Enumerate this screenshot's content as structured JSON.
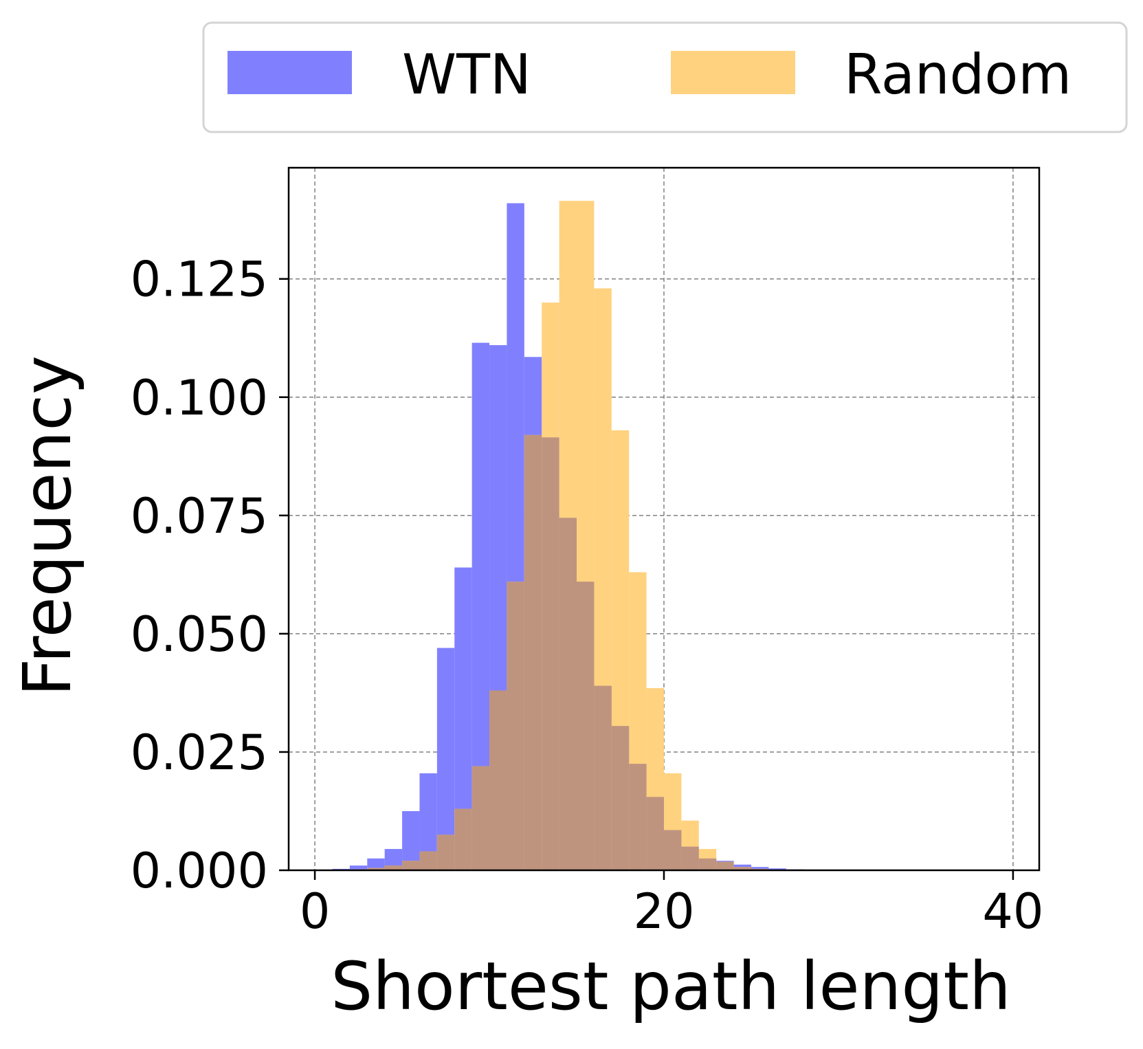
{
  "chart_data": {
    "type": "bar",
    "subtype": "overlapping-histogram",
    "title": "",
    "xlabel": "Shortest path length",
    "ylabel": "Frequency",
    "xlim": [
      -1.5,
      41.5
    ],
    "ylim": [
      0,
      0.1485
    ],
    "xticks": [
      0,
      20,
      40
    ],
    "xtick_labels": [
      "0",
      "20",
      "40"
    ],
    "yticks": [
      0.0,
      0.025,
      0.05,
      0.075,
      0.1,
      0.125
    ],
    "ytick_labels": [
      "0.000",
      "0.025",
      "0.050",
      "0.075",
      "0.100",
      "0.125"
    ],
    "grid": true,
    "legend_placement": "top, above plot",
    "series": [
      {
        "name": "WTN",
        "color": "#8080ff",
        "bin_width": 1,
        "bin_starts": [
          0,
          1,
          2,
          3,
          4,
          5,
          6,
          7,
          8,
          9,
          10,
          11,
          12,
          13,
          14,
          15,
          16,
          17,
          18,
          19,
          20,
          21,
          22,
          23,
          24,
          25,
          26,
          27,
          28,
          29,
          30
        ],
        "values": [
          0.0001,
          0.0003,
          0.001,
          0.0025,
          0.0045,
          0.0125,
          0.0205,
          0.047,
          0.064,
          0.1115,
          0.111,
          0.141,
          0.1085,
          0.0915,
          0.0745,
          0.061,
          0.039,
          0.0305,
          0.0225,
          0.0155,
          0.0085,
          0.005,
          0.0025,
          0.002,
          0.0012,
          0.0007,
          0.0004,
          0.0002,
          0.0001,
          5e-05,
          2e-05
        ]
      },
      {
        "name": "Random",
        "color": "#ffd280",
        "bin_width": 1,
        "bin_starts": [
          0,
          1,
          2,
          3,
          4,
          5,
          6,
          7,
          8,
          9,
          10,
          11,
          12,
          13,
          14,
          15,
          16,
          17,
          18,
          19,
          20,
          21,
          22,
          23,
          24,
          25,
          26,
          27,
          28,
          29,
          30
        ],
        "values": [
          2e-05,
          5e-05,
          0.0002,
          0.0005,
          0.001,
          0.002,
          0.004,
          0.0075,
          0.013,
          0.022,
          0.038,
          0.061,
          0.092,
          0.12,
          0.1415,
          0.1415,
          0.123,
          0.093,
          0.063,
          0.0385,
          0.0205,
          0.0105,
          0.0045,
          0.0018,
          0.0007,
          0.0003,
          0.0001,
          5e-05,
          2e-05,
          1e-05,
          0.0
        ]
      }
    ]
  }
}
